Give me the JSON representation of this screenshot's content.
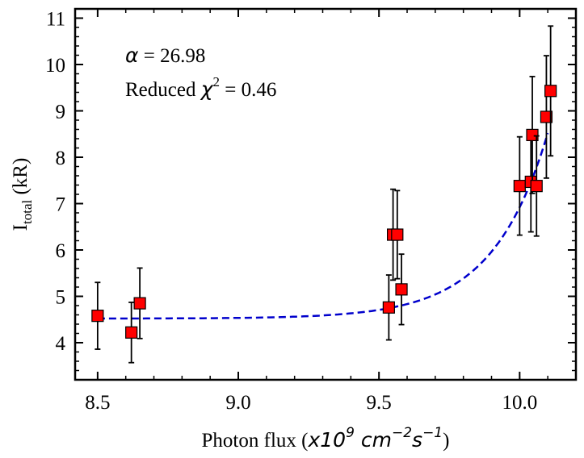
{
  "chart_data": {
    "type": "scatter",
    "xlabel": {
      "main": "Photon flux (",
      "math_base": "x10",
      "math_exp1": "9",
      "math_mid": " cm",
      "math_exp2": "−2",
      "math_s": "s",
      "math_exp3": "−1",
      "close": ")"
    },
    "ylabel": {
      "main": "I",
      "sub": "total",
      "rest": " (kR)"
    },
    "xlim": [
      8.42,
      10.2
    ],
    "ylim": [
      3.2,
      11.2
    ],
    "x_ticks": [
      8.5,
      9.0,
      9.5,
      10.0
    ],
    "x_tick_labels": [
      "8.5",
      "9.0",
      "9.5",
      "10.0"
    ],
    "y_ticks": [
      4,
      5,
      6,
      7,
      8,
      9,
      10,
      11
    ],
    "y_tick_labels": [
      "4",
      "5",
      "6",
      "7",
      "8",
      "9",
      "10",
      "11"
    ],
    "x_minor_step": 0.1,
    "y_minor_step": 0.2,
    "points": [
      {
        "x": 8.5,
        "y": 4.58,
        "yerr": 0.72
      },
      {
        "x": 8.62,
        "y": 4.22,
        "yerr": 0.65
      },
      {
        "x": 8.65,
        "y": 4.85,
        "yerr": 0.76
      },
      {
        "x": 9.535,
        "y": 4.76,
        "yerr": 0.7
      },
      {
        "x": 9.55,
        "y": 6.33,
        "yerr": 0.98
      },
      {
        "x": 9.565,
        "y": 6.33,
        "yerr": 0.95
      },
      {
        "x": 9.58,
        "y": 5.15,
        "yerr": 0.76
      },
      {
        "x": 10.0,
        "y": 7.38,
        "yerr": 1.06
      },
      {
        "x": 10.04,
        "y": 7.47,
        "yerr": 1.08
      },
      {
        "x": 10.045,
        "y": 8.48,
        "yerr": 1.26
      },
      {
        "x": 10.06,
        "y": 7.38,
        "yerr": 1.08
      },
      {
        "x": 10.095,
        "y": 8.87,
        "yerr": 1.32
      },
      {
        "x": 10.11,
        "y": 9.43,
        "yerr": 1.4
      }
    ],
    "fit": {
      "type": "exponential",
      "y0": 4.52,
      "A": 4.0,
      "x_ref": 10.1,
      "k": 5.1,
      "x_range": [
        8.5,
        10.1
      ]
    },
    "annotations": {
      "alpha_symbol": "α",
      "alpha_text": " = 26.98",
      "chi_prefix": "Reduced ",
      "chi_symbol": "χ",
      "chi_exp": "2",
      "chi_text": " = 0.46"
    },
    "colors": {
      "marker_fill": "#ff0000",
      "marker_edge": "#000000",
      "fit_line": "#0000cc",
      "errorbar": "#000000"
    }
  }
}
